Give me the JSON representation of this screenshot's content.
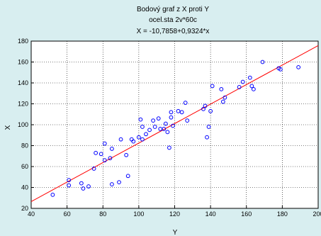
{
  "chart_data": {
    "type": "scatter",
    "title_lines": [
      "Bodový graf z X proti Y",
      "ocel.sta 2v*60c",
      "X = -10,7858+0,9324*x"
    ],
    "xlabel": "Y",
    "ylabel": "X",
    "xlim": [
      40,
      200
    ],
    "ylim": [
      20,
      180
    ],
    "xticks": [
      40,
      60,
      80,
      100,
      120,
      140,
      160,
      180,
      200
    ],
    "yticks": [
      20,
      40,
      60,
      80,
      100,
      120,
      140,
      160,
      180
    ],
    "grid": true,
    "colors": {
      "points": "#0000ff",
      "fit_line": "#ff0000",
      "background": "#d8eef0",
      "plot_bg": "#ffffff"
    },
    "fit": {
      "intercept": -10.7858,
      "slope": 0.9324
    },
    "points": [
      [
        52,
        33
      ],
      [
        61,
        47
      ],
      [
        61,
        42
      ],
      [
        68,
        44
      ],
      [
        69,
        39
      ],
      [
        72,
        41
      ],
      [
        75,
        58
      ],
      [
        76,
        73
      ],
      [
        79,
        72
      ],
      [
        81,
        82
      ],
      [
        81,
        66
      ],
      [
        84,
        68
      ],
      [
        85,
        43
      ],
      [
        85,
        77
      ],
      [
        89,
        45
      ],
      [
        90,
        86
      ],
      [
        93,
        71
      ],
      [
        94,
        51
      ],
      [
        96,
        86
      ],
      [
        97,
        84
      ],
      [
        100,
        88
      ],
      [
        101,
        105
      ],
      [
        102,
        86
      ],
      [
        102,
        98
      ],
      [
        104,
        91
      ],
      [
        106,
        95
      ],
      [
        108,
        104
      ],
      [
        109,
        98
      ],
      [
        111,
        106
      ],
      [
        112,
        96
      ],
      [
        114,
        96
      ],
      [
        115,
        101
      ],
      [
        116,
        93
      ],
      [
        117,
        78
      ],
      [
        118,
        112
      ],
      [
        118,
        107
      ],
      [
        119,
        99
      ],
      [
        122,
        113
      ],
      [
        124,
        112
      ],
      [
        126,
        121
      ],
      [
        127,
        104
      ],
      [
        136,
        115
      ],
      [
        137,
        118
      ],
      [
        138,
        88
      ],
      [
        139,
        98
      ],
      [
        140,
        113
      ],
      [
        141,
        137
      ],
      [
        146,
        134
      ],
      [
        147,
        122
      ],
      [
        148,
        126
      ],
      [
        156,
        136
      ],
      [
        158,
        141
      ],
      [
        162,
        145
      ],
      [
        163,
        137
      ],
      [
        164,
        134
      ],
      [
        169,
        160
      ],
      [
        178,
        154
      ],
      [
        179,
        153
      ],
      [
        189,
        155
      ]
    ]
  }
}
